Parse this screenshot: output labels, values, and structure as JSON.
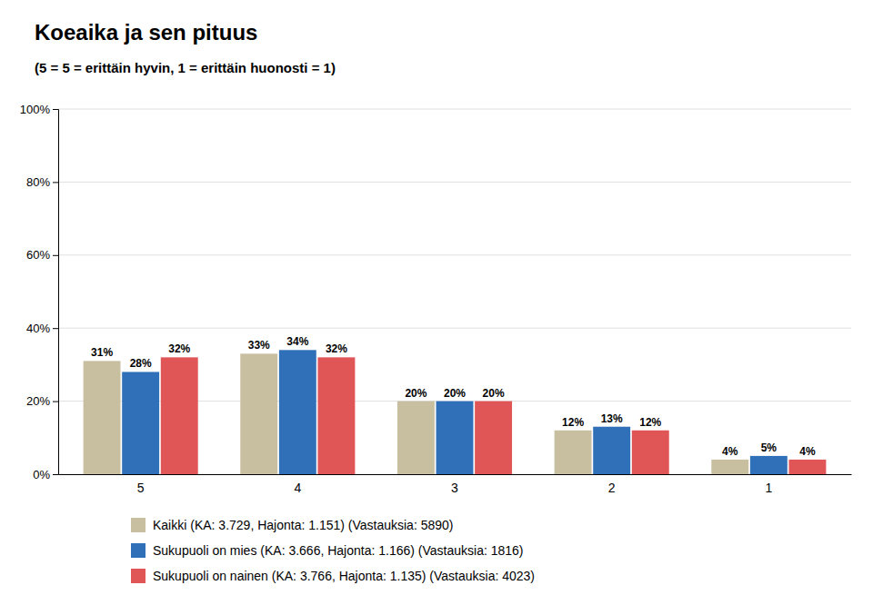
{
  "chart_data": {
    "type": "bar",
    "title": "Koeaika ja sen pituus",
    "subtitle": "(5 = 5 = erittäin hyvin, 1 = erittäin huonosti = 1)",
    "categories": [
      "5",
      "4",
      "3",
      "2",
      "1"
    ],
    "series": [
      {
        "name": "Kaikki (KA: 3.729, Hajonta: 1.151) (Vastauksia: 5890)",
        "color": "#c8bfa0",
        "values": [
          31,
          33,
          20,
          12,
          4
        ],
        "value_labels": [
          "31%",
          "33%",
          "20%",
          "12%",
          "4%"
        ]
      },
      {
        "name": "Sukupuoli on mies (KA: 3.666, Hajonta: 1.166) (Vastauksia: 1816)",
        "color": "#3070b8",
        "values": [
          28,
          34,
          20,
          13,
          5
        ],
        "value_labels": [
          "28%",
          "34%",
          "20%",
          "13%",
          "5%"
        ]
      },
      {
        "name": "Sukupuoli on nainen (KA: 3.766, Hajonta: 1.135) (Vastauksia: 4023)",
        "color": "#e05555",
        "values": [
          32,
          32,
          20,
          12,
          4
        ],
        "value_labels": [
          "32%",
          "32%",
          "20%",
          "12%",
          "4%"
        ]
      }
    ],
    "ylim": [
      0,
      100
    ],
    "yticks": [
      {
        "value": 0,
        "label": "0%"
      },
      {
        "value": 20,
        "label": "20%"
      },
      {
        "value": 40,
        "label": "40%"
      },
      {
        "value": 60,
        "label": "60%"
      },
      {
        "value": 80,
        "label": "80%"
      },
      {
        "value": 100,
        "label": "100%"
      }
    ],
    "grid": true,
    "data_labels": true,
    "legend": "bottom"
  }
}
